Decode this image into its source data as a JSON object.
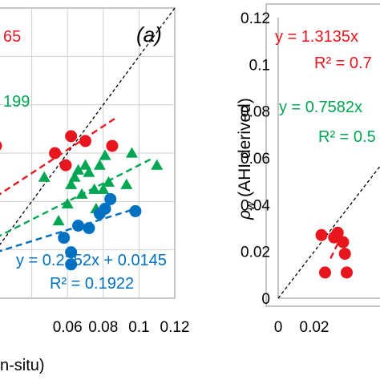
{
  "colors": {
    "red": "#e8161e",
    "green": "#00a651",
    "blue": "#0070c0",
    "ref": "#000000",
    "axis": "#8c8c8c"
  },
  "chart_data": [
    {
      "type": "scatter",
      "panel_label": "(a)",
      "xlim": [
        0.02,
        0.12
      ],
      "ylim": [
        0,
        0.12
      ],
      "xticks": [
        "0.06",
        "0.08",
        "0.1",
        "0.12"
      ],
      "xlabel": "n-situ)",
      "series": [
        {
          "color": "red",
          "marker": "circle",
          "points": [
            [
              0.02,
              0.063
            ],
            [
              0.053,
              0.06
            ],
            [
              0.059,
              0.055
            ],
            [
              0.062,
              0.067
            ],
            [
              0.07,
              0.065
            ],
            [
              0.085,
              0.063
            ]
          ],
          "fit": {
            "x": [
              0.02,
              0.088
            ],
            "y": [
              0.042,
              0.075
            ]
          }
        },
        {
          "color": "green",
          "marker": "triangle",
          "points": [
            [
              0.047,
              0.05
            ],
            [
              0.055,
              0.032
            ],
            [
              0.06,
              0.039
            ],
            [
              0.062,
              0.047
            ],
            [
              0.064,
              0.05
            ],
            [
              0.066,
              0.053
            ],
            [
              0.068,
              0.043
            ],
            [
              0.07,
              0.055
            ],
            [
              0.072,
              0.052
            ],
            [
              0.075,
              0.045
            ],
            [
              0.076,
              0.037
            ],
            [
              0.078,
              0.055
            ],
            [
              0.08,
              0.045
            ],
            [
              0.081,
              0.059
            ],
            [
              0.083,
              0.048
            ],
            [
              0.093,
              0.047
            ],
            [
              0.096,
              0.06
            ],
            [
              0.11,
              0.055
            ]
          ],
          "fit": {
            "x": [
              0.02,
              0.108
            ],
            "y": [
              0.025,
              0.058
            ]
          }
        },
        {
          "color": "blue",
          "marker": "circle",
          "points": [
            [
              0.058,
              0.025
            ],
            [
              0.062,
              0.019
            ],
            [
              0.062,
              0.014
            ],
            [
              0.066,
              0.03
            ],
            [
              0.072,
              0.029
            ],
            [
              0.078,
              0.035
            ],
            [
              0.081,
              0.037
            ],
            [
              0.084,
              0.041
            ],
            [
              0.098,
              0.036
            ]
          ],
          "fit": {
            "x": [
              0.02,
              0.098
            ],
            "y": [
              0.019,
              0.037
            ]
          }
        }
      ],
      "annotations": [
        {
          "text": "65",
          "color": "red"
        },
        {
          "text": "199",
          "color": "green"
        },
        {
          "text": "y = 0.2252x + 0.0145",
          "color": "blue"
        },
        {
          "text": "R² = 0.1922",
          "color": "blue"
        }
      ]
    },
    {
      "type": "scatter",
      "xlim": [
        0,
        0.06
      ],
      "ylim": [
        0,
        0.12
      ],
      "xticks": [
        "0",
        "0.02"
      ],
      "yticks": [
        "0",
        "0.02",
        "0.04",
        "0.06",
        "0.08",
        "0.1",
        "0.12"
      ],
      "ylabel_symbol": "ρ",
      "ylabel_sub": "w",
      "ylabel_text": " (AHI derived)",
      "series": [
        {
          "color": "red",
          "marker": "circle",
          "points": [
            [
              0.024,
              0.027
            ],
            [
              0.026,
              0.011
            ],
            [
              0.031,
              0.026
            ],
            [
              0.033,
              0.028
            ],
            [
              0.036,
              0.024
            ],
            [
              0.037,
              0.019
            ],
            [
              0.038,
              0.011
            ]
          ],
          "fit": {
            "x": [
              0.029,
              0.036
            ],
            "y": [
              0.017,
              0.028
            ]
          }
        }
      ],
      "annotations": [
        {
          "text": "y = 1.3135x",
          "color": "red"
        },
        {
          "text": "R² = 0.7",
          "color": "red"
        },
        {
          "text": "y = 0.7582x",
          "color": "green"
        },
        {
          "text": "R² = 0.5",
          "color": "green"
        }
      ]
    }
  ]
}
